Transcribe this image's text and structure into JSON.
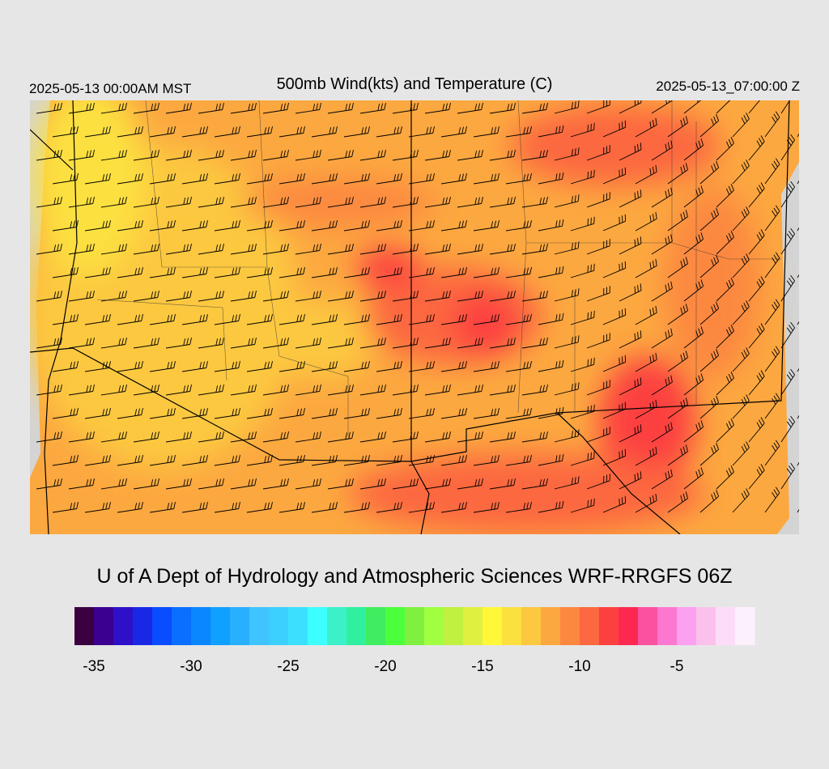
{
  "header": {
    "left": "2025-05-13 00:00AM MST",
    "title": "500mb Wind(kts) and Temperature (C)",
    "right": "2025-05-13_07:00:00 Z"
  },
  "credit": "U of A Dept of Hydrology and Atmospheric Sciences WRF-RRGFS 06Z",
  "colorbar": {
    "bounds": [
      -36,
      -35,
      -34,
      -33,
      -32,
      -31,
      -30,
      -29,
      -28,
      -27,
      -26,
      -25,
      -24,
      -23,
      -22,
      -21,
      -20,
      -19,
      -18,
      -17,
      -16,
      -15,
      -14,
      -13,
      -12,
      -11,
      -10,
      -9,
      -8,
      -7,
      -6,
      -5,
      -4,
      -3,
      -2,
      -1
    ],
    "colors": [
      "#3a0040",
      "#3c0090",
      "#2e10c8",
      "#1a28e6",
      "#0a4cff",
      "#0a6eff",
      "#0a86ff",
      "#10a0ff",
      "#28b0ff",
      "#40c4ff",
      "#3cd0ff",
      "#3ce0ff",
      "#3cffff",
      "#3cf0c8",
      "#30f0a0",
      "#40ec60",
      "#4cff3c",
      "#80f040",
      "#a0ff40",
      "#c0f040",
      "#e0f040",
      "#fff838",
      "#fce040",
      "#fcc840",
      "#fca840",
      "#fc8840",
      "#fc6840",
      "#fc4040",
      "#fc2850",
      "#fc50a0",
      "#fc78d0",
      "#fca0f0",
      "#fcc0ec",
      "#fcdcf8",
      "#fcf0fc"
    ],
    "ticks": [
      -35,
      -30,
      -25,
      -20,
      -15,
      -10,
      -5
    ]
  }
}
